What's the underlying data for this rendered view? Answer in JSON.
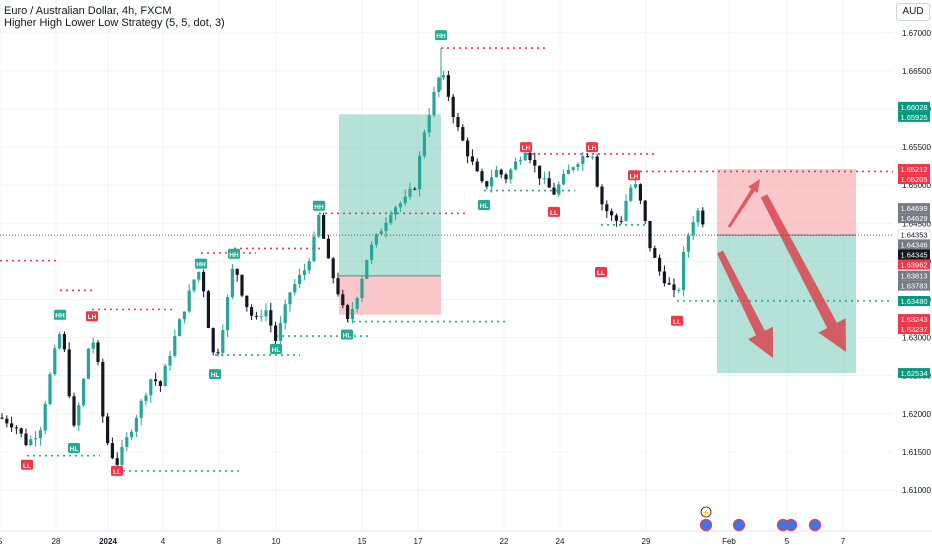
{
  "header": {
    "title": "Euro / Australian Dollar, 4h, FXCM",
    "strategy": "Higher High Lower Low Strategy (5, 5, dot, 3)",
    "currency": "AUD"
  },
  "colors": {
    "up": "#26a69a",
    "down": "#131722",
    "hh": "#22ab94",
    "ll": "#f23645",
    "profit_zone": "#5bbfa8",
    "loss_zone": "#f7a9af",
    "arrow": "#d8414b"
  },
  "chart_data": {
    "type": "candlestick",
    "instrument": "Euro / Australian Dollar",
    "timeframe": "4h",
    "ylim": [
      1.6075,
      1.6705
    ],
    "yticks": [
      "1.61000",
      "1.61500",
      "1.62000",
      "1.62500",
      "1.63000",
      "1.63500",
      "1.64000",
      "1.64500",
      "1.65000",
      "1.65500",
      "1.66000",
      "1.66500",
      "1.67000"
    ],
    "xticks": [
      {
        "label": "5",
        "x": "Dec 25"
      },
      {
        "label": "28",
        "x": "Dec 28"
      },
      {
        "label": "2024",
        "x": "Jan 1"
      },
      {
        "label": "4",
        "x": "Jan 4"
      },
      {
        "label": "8",
        "x": "Jan 8"
      },
      {
        "label": "10",
        "x": "Jan 10"
      },
      {
        "label": "15",
        "x": "Jan 15"
      },
      {
        "label": "17",
        "x": "Jan 17"
      },
      {
        "label": "22",
        "x": "Jan 22"
      },
      {
        "label": "24",
        "x": "Jan 24"
      },
      {
        "label": "29",
        "x": "Jan 29"
      },
      {
        "label": "Feb",
        "x": "Feb 1"
      },
      {
        "label": "5",
        "x": "Feb 5"
      },
      {
        "label": "7",
        "x": "Feb 7"
      }
    ],
    "price_tags": [
      {
        "value": "1.66028",
        "price": 1.66028,
        "kind": "green"
      },
      {
        "value": "1.65925",
        "price": 1.65925,
        "kind": "green"
      },
      {
        "value": "1.65212",
        "price": 1.65212,
        "kind": "red"
      },
      {
        "value": "1.65205",
        "price": 1.65205,
        "kind": "red"
      },
      {
        "value": "1.64699",
        "price": 1.64699,
        "kind": "gray"
      },
      {
        "value": "1.64629",
        "price": 1.64629,
        "kind": "gray"
      },
      {
        "value": "1.64353",
        "price": 1.64353,
        "kind": "white"
      },
      {
        "value": "1.64346",
        "price": 1.64346,
        "kind": "gray"
      },
      {
        "value": "1.64345",
        "price": 1.64345,
        "kind": "dark"
      },
      {
        "value": "1.63962",
        "price": 1.63962,
        "kind": "red"
      },
      {
        "value": "1.63813",
        "price": 1.63813,
        "kind": "gray"
      },
      {
        "value": "1.63783",
        "price": 1.63783,
        "kind": "gray"
      },
      {
        "value": "1.63480",
        "price": 1.6348,
        "kind": "green"
      },
      {
        "value": "1.63243",
        "price": 1.63243,
        "kind": "red"
      },
      {
        "value": "1.63237",
        "price": 1.63237,
        "kind": "red"
      },
      {
        "value": "1.62534",
        "price": 1.62534,
        "kind": "green"
      }
    ],
    "current_price": 1.64345,
    "pivot_labels": [
      {
        "text": "HH",
        "type": "high",
        "t": 60,
        "price": 1.633
      },
      {
        "text": "LH",
        "type": "low",
        "t": 92,
        "price": 1.6328
      },
      {
        "text": "HH",
        "type": "high",
        "t": 201,
        "price": 1.6397
      },
      {
        "text": "HH",
        "type": "high",
        "t": 234,
        "price": 1.641
      },
      {
        "text": "HH",
        "type": "high",
        "t": 319,
        "price": 1.6473
      },
      {
        "text": "HH",
        "type": "high",
        "t": 441,
        "price": 1.6697
      },
      {
        "text": "LH",
        "type": "low",
        "t": 526,
        "price": 1.655
      },
      {
        "text": "LH",
        "type": "low",
        "t": 592,
        "price": 1.655
      },
      {
        "text": "LH",
        "type": "low",
        "t": 634,
        "price": 1.6513
      },
      {
        "text": "HL",
        "type": "high",
        "t": 74,
        "price": 1.6155
      },
      {
        "text": "LL",
        "type": "low",
        "t": 27,
        "price": 1.6133
      },
      {
        "text": "LL",
        "type": "low",
        "t": 117,
        "price": 1.6125
      },
      {
        "text": "HL",
        "type": "high",
        "t": 215,
        "price": 1.6252
      },
      {
        "text": "HL",
        "type": "high",
        "t": 276,
        "price": 1.6285
      },
      {
        "text": "HL",
        "type": "high",
        "t": 347,
        "price": 1.6304
      },
      {
        "text": "HL",
        "type": "high",
        "t": 484,
        "price": 1.6474
      },
      {
        "text": "LL",
        "type": "low",
        "t": 554,
        "price": 1.6465
      },
      {
        "text": "LL",
        "type": "low",
        "t": 601,
        "price": 1.6386
      },
      {
        "text": "LL",
        "type": "low",
        "t": 677,
        "price": 1.6322
      }
    ],
    "levels": [
      {
        "price": 1.668,
        "t1": 441,
        "t2": 548,
        "color": "red"
      },
      {
        "price": 1.6541,
        "t1": 526,
        "t2": 658,
        "color": "red"
      },
      {
        "price": 1.6518,
        "t1": 634,
        "t2": 932,
        "color": "red"
      },
      {
        "price": 1.6463,
        "t1": 319,
        "t2": 466,
        "color": "red"
      },
      {
        "price": 1.6417,
        "t1": 234,
        "t2": 320,
        "color": "red"
      },
      {
        "price": 1.6411,
        "t1": 201,
        "t2": 256,
        "color": "red"
      },
      {
        "price": 1.6337,
        "t1": 92,
        "t2": 172,
        "color": "red"
      },
      {
        "price": 1.6362,
        "t1": 60,
        "t2": 96,
        "color": "red"
      },
      {
        "price": 1.6401,
        "t1": 0,
        "t2": 60,
        "color": "red"
      },
      {
        "price": 1.6493,
        "t1": 484,
        "t2": 575,
        "color": "green"
      },
      {
        "price": 1.6448,
        "t1": 601,
        "t2": 650,
        "color": "green"
      },
      {
        "price": 1.6348,
        "t1": 677,
        "t2": 932,
        "color": "green"
      },
      {
        "price": 1.6321,
        "t1": 347,
        "t2": 506,
        "color": "green"
      },
      {
        "price": 1.6302,
        "t1": 276,
        "t2": 370,
        "color": "green"
      },
      {
        "price": 1.6277,
        "t1": 215,
        "t2": 300,
        "color": "green"
      },
      {
        "price": 1.6125,
        "t1": 117,
        "t2": 240,
        "color": "green"
      },
      {
        "price": 1.6145,
        "t1": 27,
        "t2": 100,
        "color": "green"
      }
    ],
    "positions": [
      {
        "t1": 339,
        "t2": 441,
        "entry": 1.6381,
        "target": 1.6593,
        "stop": 1.633,
        "dir": "long"
      },
      {
        "t1": 717,
        "t2": 856,
        "entry": 1.64345,
        "target": 1.62534,
        "stop": 1.65212,
        "dir": "short"
      }
    ],
    "anchors": [
      {
        "t": 0,
        "p": 1.6195
      },
      {
        "t": 15,
        "p": 1.6185
      },
      {
        "t": 27,
        "p": 1.616
      },
      {
        "t": 40,
        "p": 1.618
      },
      {
        "t": 50,
        "p": 1.625
      },
      {
        "t": 58,
        "p": 1.63
      },
      {
        "t": 62,
        "p": 1.631
      },
      {
        "t": 67,
        "p": 1.625
      },
      {
        "t": 74,
        "p": 1.618
      },
      {
        "t": 82,
        "p": 1.623
      },
      {
        "t": 90,
        "p": 1.63
      },
      {
        "t": 96,
        "p": 1.629
      },
      {
        "t": 104,
        "p": 1.618
      },
      {
        "t": 110,
        "p": 1.615
      },
      {
        "t": 117,
        "p": 1.6135
      },
      {
        "t": 128,
        "p": 1.617
      },
      {
        "t": 140,
        "p": 1.621
      },
      {
        "t": 152,
        "p": 1.625
      },
      {
        "t": 160,
        "p": 1.6235
      },
      {
        "t": 170,
        "p": 1.628
      },
      {
        "t": 182,
        "p": 1.633
      },
      {
        "t": 195,
        "p": 1.638
      },
      {
        "t": 201,
        "p": 1.639
      },
      {
        "t": 208,
        "p": 1.632
      },
      {
        "t": 215,
        "p": 1.6265
      },
      {
        "t": 225,
        "p": 1.633
      },
      {
        "t": 234,
        "p": 1.64
      },
      {
        "t": 244,
        "p": 1.635
      },
      {
        "t": 255,
        "p": 1.632
      },
      {
        "t": 265,
        "p": 1.634
      },
      {
        "t": 276,
        "p": 1.6295
      },
      {
        "t": 290,
        "p": 1.636
      },
      {
        "t": 305,
        "p": 1.639
      },
      {
        "t": 313,
        "p": 1.642
      },
      {
        "t": 319,
        "p": 1.646
      },
      {
        "t": 328,
        "p": 1.64
      },
      {
        "t": 338,
        "p": 1.636
      },
      {
        "t": 347,
        "p": 1.6318
      },
      {
        "t": 358,
        "p": 1.636
      },
      {
        "t": 368,
        "p": 1.641
      },
      {
        "t": 380,
        "p": 1.644
      },
      {
        "t": 392,
        "p": 1.647
      },
      {
        "t": 405,
        "p": 1.648
      },
      {
        "t": 415,
        "p": 1.65
      },
      {
        "t": 424,
        "p": 1.657
      },
      {
        "t": 432,
        "p": 1.661
      },
      {
        "t": 441,
        "p": 1.665
      },
      {
        "t": 448,
        "p": 1.662
      },
      {
        "t": 456,
        "p": 1.658
      },
      {
        "t": 465,
        "p": 1.655
      },
      {
        "t": 475,
        "p": 1.652
      },
      {
        "t": 484,
        "p": 1.6495
      },
      {
        "t": 495,
        "p": 1.652
      },
      {
        "t": 506,
        "p": 1.651
      },
      {
        "t": 516,
        "p": 1.653
      },
      {
        "t": 526,
        "p": 1.655
      },
      {
        "t": 536,
        "p": 1.652
      },
      {
        "t": 546,
        "p": 1.65
      },
      {
        "t": 554,
        "p": 1.649
      },
      {
        "t": 564,
        "p": 1.651
      },
      {
        "t": 575,
        "p": 1.653
      },
      {
        "t": 585,
        "p": 1.654
      },
      {
        "t": 592,
        "p": 1.6545
      },
      {
        "t": 600,
        "p": 1.648
      },
      {
        "t": 610,
        "p": 1.646
      },
      {
        "t": 620,
        "p": 1.645
      },
      {
        "t": 628,
        "p": 1.649
      },
      {
        "t": 634,
        "p": 1.6505
      },
      {
        "t": 642,
        "p": 1.647
      },
      {
        "t": 650,
        "p": 1.642
      },
      {
        "t": 658,
        "p": 1.639
      },
      {
        "t": 668,
        "p": 1.637
      },
      {
        "t": 677,
        "p": 1.635
      },
      {
        "t": 685,
        "p": 1.642
      },
      {
        "t": 693,
        "p": 1.6455
      },
      {
        "t": 700,
        "p": 1.647
      },
      {
        "t": 706,
        "p": 1.64345
      }
    ]
  },
  "timeline_icons": [
    "lightning-icon",
    "flag-icon",
    "flag-icon",
    "flag-icon",
    "flag-icon",
    "flag-icon"
  ]
}
